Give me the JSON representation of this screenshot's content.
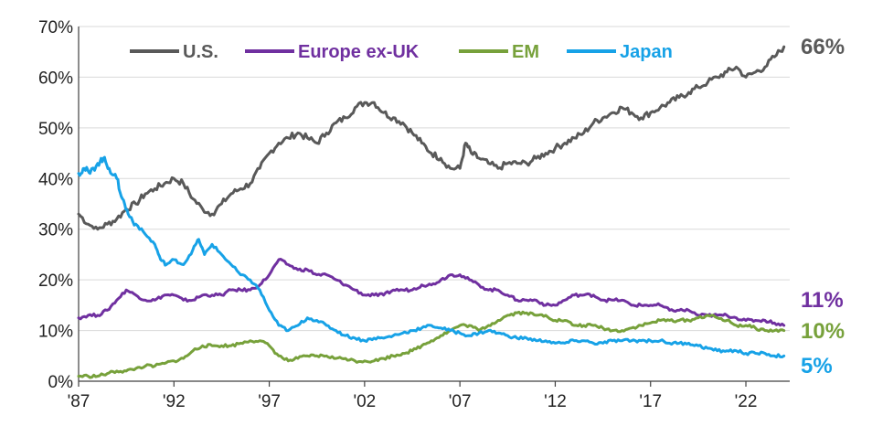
{
  "chart_data": {
    "type": "line",
    "title": "",
    "xlabel": "",
    "ylabel": "",
    "xlim": [
      1987,
      2024.3
    ],
    "ylim": [
      0,
      70
    ],
    "y_ticks": [
      0,
      10,
      20,
      30,
      40,
      50,
      60,
      70
    ],
    "y_tick_labels": [
      "0%",
      "10%",
      "20%",
      "30%",
      "40%",
      "50%",
      "60%",
      "70%"
    ],
    "x_ticks": [
      1987,
      1992,
      1997,
      2002,
      2007,
      2012,
      2017,
      2022
    ],
    "x_tick_labels": [
      "'87",
      "'92",
      "'97",
      "'02",
      "'07",
      "'12",
      "'17",
      "'22"
    ],
    "grid": "horizontal",
    "legend_position": "top",
    "series": [
      {
        "name": "U.S.",
        "color": "#595959",
        "end_label": "66%",
        "points": [
          [
            1987.0,
            33
          ],
          [
            1987.5,
            31
          ],
          [
            1988.0,
            30
          ],
          [
            1988.5,
            31
          ],
          [
            1989.0,
            32
          ],
          [
            1989.5,
            34
          ],
          [
            1990.0,
            35
          ],
          [
            1990.5,
            37
          ],
          [
            1991.0,
            38
          ],
          [
            1991.5,
            39
          ],
          [
            1992.0,
            40
          ],
          [
            1992.5,
            39
          ],
          [
            1993.0,
            36
          ],
          [
            1993.5,
            34
          ],
          [
            1994.0,
            33
          ],
          [
            1994.5,
            35
          ],
          [
            1995.0,
            37
          ],
          [
            1995.5,
            38
          ],
          [
            1996.0,
            39
          ],
          [
            1996.5,
            42
          ],
          [
            1997.0,
            45
          ],
          [
            1997.5,
            47
          ],
          [
            1998.0,
            48
          ],
          [
            1998.5,
            49
          ],
          [
            1999.0,
            48
          ],
          [
            1999.5,
            47
          ],
          [
            2000.0,
            49
          ],
          [
            2000.5,
            51
          ],
          [
            2001.0,
            52
          ],
          [
            2001.5,
            54
          ],
          [
            2002.0,
            55
          ],
          [
            2002.5,
            55
          ],
          [
            2003.0,
            53
          ],
          [
            2003.5,
            52
          ],
          [
            2004.0,
            51
          ],
          [
            2004.5,
            49
          ],
          [
            2005.0,
            47
          ],
          [
            2005.5,
            45
          ],
          [
            2006.0,
            44
          ],
          [
            2006.5,
            42
          ],
          [
            2007.0,
            42
          ],
          [
            2007.3,
            47
          ],
          [
            2007.6,
            45
          ],
          [
            2008.0,
            44
          ],
          [
            2008.5,
            43
          ],
          [
            2009.0,
            42
          ],
          [
            2009.5,
            43
          ],
          [
            2010.0,
            43
          ],
          [
            2010.5,
            43
          ],
          [
            2011.0,
            44
          ],
          [
            2011.5,
            45
          ],
          [
            2012.0,
            46
          ],
          [
            2012.5,
            47
          ],
          [
            2013.0,
            48
          ],
          [
            2013.5,
            49
          ],
          [
            2014.0,
            51
          ],
          [
            2014.5,
            52
          ],
          [
            2015.0,
            53
          ],
          [
            2015.5,
            54
          ],
          [
            2016.0,
            53
          ],
          [
            2016.5,
            52
          ],
          [
            2017.0,
            53
          ],
          [
            2017.5,
            54
          ],
          [
            2018.0,
            55
          ],
          [
            2018.5,
            56
          ],
          [
            2019.0,
            57
          ],
          [
            2019.5,
            58
          ],
          [
            2020.0,
            59
          ],
          [
            2020.5,
            60
          ],
          [
            2021.0,
            61
          ],
          [
            2021.5,
            62
          ],
          [
            2022.0,
            60
          ],
          [
            2022.5,
            61
          ],
          [
            2023.0,
            62
          ],
          [
            2023.5,
            64
          ],
          [
            2024.0,
            66
          ]
        ]
      },
      {
        "name": "Europe ex-UK",
        "color": "#7030A0",
        "end_label": "11%",
        "points": [
          [
            1987.0,
            12.5
          ],
          [
            1987.5,
            13
          ],
          [
            1988.0,
            13
          ],
          [
            1988.5,
            14
          ],
          [
            1989.0,
            16
          ],
          [
            1989.5,
            18
          ],
          [
            1990.0,
            17
          ],
          [
            1990.5,
            16
          ],
          [
            1991.0,
            16
          ],
          [
            1991.5,
            17
          ],
          [
            1992.0,
            17
          ],
          [
            1992.5,
            16
          ],
          [
            1993.0,
            16
          ],
          [
            1993.5,
            17
          ],
          [
            1994.0,
            17
          ],
          [
            1994.5,
            17
          ],
          [
            1995.0,
            18
          ],
          [
            1995.5,
            18
          ],
          [
            1996.0,
            18
          ],
          [
            1996.5,
            19
          ],
          [
            1997.0,
            21
          ],
          [
            1997.5,
            24
          ],
          [
            1998.0,
            23
          ],
          [
            1998.5,
            22
          ],
          [
            1999.0,
            22
          ],
          [
            1999.5,
            21
          ],
          [
            2000.0,
            21
          ],
          [
            2000.5,
            20
          ],
          [
            2001.0,
            19
          ],
          [
            2001.5,
            18
          ],
          [
            2002.0,
            17
          ],
          [
            2002.5,
            17
          ],
          [
            2003.0,
            17
          ],
          [
            2003.5,
            18
          ],
          [
            2004.0,
            18
          ],
          [
            2004.5,
            18
          ],
          [
            2005.0,
            19
          ],
          [
            2005.5,
            19
          ],
          [
            2006.0,
            20
          ],
          [
            2006.5,
            21
          ],
          [
            2007.0,
            21
          ],
          [
            2007.5,
            20
          ],
          [
            2008.0,
            19
          ],
          [
            2008.5,
            18
          ],
          [
            2009.0,
            18
          ],
          [
            2009.5,
            17
          ],
          [
            2010.0,
            16
          ],
          [
            2010.5,
            16
          ],
          [
            2011.0,
            16
          ],
          [
            2011.5,
            15
          ],
          [
            2012.0,
            15
          ],
          [
            2012.5,
            16
          ],
          [
            2013.0,
            17
          ],
          [
            2013.5,
            17
          ],
          [
            2014.0,
            17
          ],
          [
            2014.5,
            16
          ],
          [
            2015.0,
            16
          ],
          [
            2015.5,
            16
          ],
          [
            2016.0,
            15
          ],
          [
            2016.5,
            15
          ],
          [
            2017.0,
            15
          ],
          [
            2017.5,
            15
          ],
          [
            2018.0,
            14
          ],
          [
            2018.5,
            14
          ],
          [
            2019.0,
            14
          ],
          [
            2019.5,
            13
          ],
          [
            2020.0,
            13
          ],
          [
            2020.5,
            13
          ],
          [
            2021.0,
            13
          ],
          [
            2021.5,
            12.5
          ],
          [
            2022.0,
            12
          ],
          [
            2022.5,
            12
          ],
          [
            2023.0,
            12
          ],
          [
            2023.5,
            11.5
          ],
          [
            2024.0,
            11
          ]
        ]
      },
      {
        "name": "EM",
        "color": "#77A13B",
        "end_label": "10%",
        "points": [
          [
            1987.0,
            1
          ],
          [
            1987.5,
            1
          ],
          [
            1988.0,
            1
          ],
          [
            1988.5,
            1.5
          ],
          [
            1989.0,
            2
          ],
          [
            1989.5,
            2
          ],
          [
            1990.0,
            2.5
          ],
          [
            1990.5,
            3
          ],
          [
            1991.0,
            3
          ],
          [
            1991.5,
            3.5
          ],
          [
            1992.0,
            4
          ],
          [
            1992.5,
            4.5
          ],
          [
            1993.0,
            6
          ],
          [
            1993.5,
            7
          ],
          [
            1994.0,
            7
          ],
          [
            1994.5,
            7
          ],
          [
            1995.0,
            7
          ],
          [
            1995.5,
            7.5
          ],
          [
            1996.0,
            8
          ],
          [
            1996.5,
            8
          ],
          [
            1997.0,
            7
          ],
          [
            1997.5,
            5
          ],
          [
            1998.0,
            4
          ],
          [
            1998.5,
            4.5
          ],
          [
            1999.0,
            5
          ],
          [
            1999.5,
            5
          ],
          [
            2000.0,
            5
          ],
          [
            2000.5,
            4.5
          ],
          [
            2001.0,
            4.5
          ],
          [
            2001.5,
            4
          ],
          [
            2002.0,
            4
          ],
          [
            2002.5,
            4
          ],
          [
            2003.0,
            4.5
          ],
          [
            2003.5,
            5
          ],
          [
            2004.0,
            5.5
          ],
          [
            2004.5,
            6
          ],
          [
            2005.0,
            7
          ],
          [
            2005.5,
            8
          ],
          [
            2006.0,
            9
          ],
          [
            2006.5,
            10
          ],
          [
            2007.0,
            11
          ],
          [
            2007.5,
            11
          ],
          [
            2008.0,
            10
          ],
          [
            2008.5,
            11
          ],
          [
            2009.0,
            12
          ],
          [
            2009.5,
            13
          ],
          [
            2010.0,
            13.5
          ],
          [
            2010.5,
            13.5
          ],
          [
            2011.0,
            13
          ],
          [
            2011.5,
            13
          ],
          [
            2012.0,
            12
          ],
          [
            2012.5,
            12
          ],
          [
            2013.0,
            11
          ],
          [
            2013.5,
            11
          ],
          [
            2014.0,
            11
          ],
          [
            2014.5,
            10.5
          ],
          [
            2015.0,
            10
          ],
          [
            2015.5,
            10
          ],
          [
            2016.0,
            10.5
          ],
          [
            2016.5,
            11
          ],
          [
            2017.0,
            11.5
          ],
          [
            2017.5,
            12
          ],
          [
            2018.0,
            12
          ],
          [
            2018.5,
            12
          ],
          [
            2019.0,
            12
          ],
          [
            2019.5,
            12.5
          ],
          [
            2020.0,
            13
          ],
          [
            2020.5,
            12.5
          ],
          [
            2021.0,
            12
          ],
          [
            2021.5,
            11
          ],
          [
            2022.0,
            11
          ],
          [
            2022.5,
            10.5
          ],
          [
            2023.0,
            10
          ],
          [
            2023.5,
            10
          ],
          [
            2024.0,
            10
          ]
        ]
      },
      {
        "name": "Japan",
        "color": "#17A2E7",
        "end_label": "5%",
        "points": [
          [
            1987.0,
            41
          ],
          [
            1987.3,
            42
          ],
          [
            1987.6,
            41
          ],
          [
            1988.0,
            43
          ],
          [
            1988.3,
            44
          ],
          [
            1988.6,
            42
          ],
          [
            1989.0,
            40
          ],
          [
            1989.3,
            36
          ],
          [
            1989.6,
            33
          ],
          [
            1990.0,
            31
          ],
          [
            1990.5,
            29
          ],
          [
            1991.0,
            27
          ],
          [
            1991.3,
            24
          ],
          [
            1991.6,
            23
          ],
          [
            1992.0,
            24
          ],
          [
            1992.5,
            23
          ],
          [
            1993.0,
            26
          ],
          [
            1993.3,
            28
          ],
          [
            1993.6,
            25
          ],
          [
            1994.0,
            27
          ],
          [
            1994.5,
            25
          ],
          [
            1995.0,
            23
          ],
          [
            1995.5,
            21
          ],
          [
            1996.0,
            20
          ],
          [
            1996.5,
            18
          ],
          [
            1997.0,
            14
          ],
          [
            1997.5,
            11
          ],
          [
            1998.0,
            10
          ],
          [
            1998.5,
            11
          ],
          [
            1999.0,
            12.5
          ],
          [
            1999.5,
            12
          ],
          [
            2000.0,
            11
          ],
          [
            2000.5,
            10
          ],
          [
            2001.0,
            9
          ],
          [
            2001.5,
            8.5
          ],
          [
            2002.0,
            8
          ],
          [
            2002.5,
            8.5
          ],
          [
            2003.0,
            8.5
          ],
          [
            2003.5,
            9
          ],
          [
            2004.0,
            9.5
          ],
          [
            2004.5,
            10
          ],
          [
            2005.0,
            10.5
          ],
          [
            2005.5,
            11
          ],
          [
            2006.0,
            10.5
          ],
          [
            2006.5,
            10
          ],
          [
            2007.0,
            9.5
          ],
          [
            2007.5,
            9
          ],
          [
            2008.0,
            9.5
          ],
          [
            2008.5,
            10
          ],
          [
            2009.0,
            9.5
          ],
          [
            2009.5,
            9
          ],
          [
            2010.0,
            8.5
          ],
          [
            2010.5,
            8.5
          ],
          [
            2011.0,
            8
          ],
          [
            2011.5,
            8
          ],
          [
            2012.0,
            7.5
          ],
          [
            2012.5,
            7.5
          ],
          [
            2013.0,
            8
          ],
          [
            2013.5,
            8
          ],
          [
            2014.0,
            7.5
          ],
          [
            2014.5,
            7.5
          ],
          [
            2015.0,
            8
          ],
          [
            2015.5,
            8
          ],
          [
            2016.0,
            8
          ],
          [
            2016.5,
            8
          ],
          [
            2017.0,
            8
          ],
          [
            2017.5,
            8
          ],
          [
            2018.0,
            7.5
          ],
          [
            2018.5,
            7.5
          ],
          [
            2019.0,
            7.5
          ],
          [
            2019.5,
            7
          ],
          [
            2020.0,
            6.5
          ],
          [
            2020.5,
            6
          ],
          [
            2021.0,
            6
          ],
          [
            2021.5,
            6
          ],
          [
            2022.0,
            5.5
          ],
          [
            2022.5,
            5.5
          ],
          [
            2023.0,
            5.5
          ],
          [
            2023.5,
            5
          ],
          [
            2024.0,
            5
          ]
        ]
      }
    ]
  }
}
